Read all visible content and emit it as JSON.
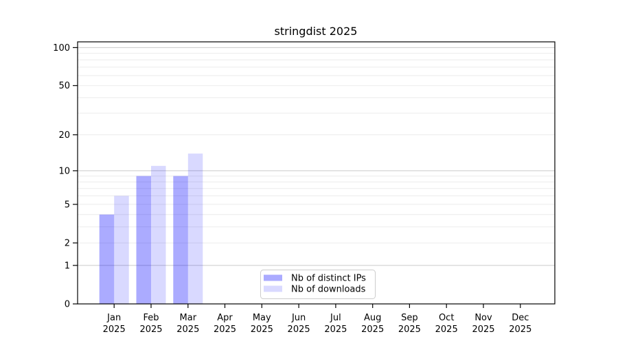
{
  "chart_data": {
    "type": "bar",
    "title": "stringdist 2025",
    "x_tick_labels": [
      [
        "Jan",
        "2025"
      ],
      [
        "Feb",
        "2025"
      ],
      [
        "Mar",
        "2025"
      ],
      [
        "Apr",
        "2025"
      ],
      [
        "May",
        "2025"
      ],
      [
        "Jun",
        "2025"
      ],
      [
        "Jul",
        "2025"
      ],
      [
        "Aug",
        "2025"
      ],
      [
        "Sep",
        "2025"
      ],
      [
        "Oct",
        "2025"
      ],
      [
        "Nov",
        "2025"
      ],
      [
        "Dec",
        "2025"
      ]
    ],
    "series": [
      {
        "name": "Nb of distinct IPs",
        "color": "#0000ff",
        "fill_opacity": 0.33,
        "values": [
          4,
          9,
          9,
          0,
          0,
          0,
          0,
          0,
          0,
          0,
          0,
          0
        ]
      },
      {
        "name": "Nb of downloads",
        "color": "#0000ff",
        "fill_opacity": 0.15,
        "values": [
          6,
          11,
          14,
          0,
          0,
          0,
          0,
          0,
          0,
          0,
          0,
          0
        ]
      }
    ],
    "y_ticks": [
      0,
      1,
      2,
      5,
      10,
      20,
      50,
      100
    ],
    "y_scale": "log1p",
    "ylim": [
      0,
      111
    ],
    "grid": {
      "minor_color": "#ebebeb",
      "major_color": "#c9c9c9",
      "major_values": [
        1,
        10,
        100
      ]
    },
    "axis_color": "#000000",
    "legend": {
      "position": "lower-center",
      "border_color": "#cccccc",
      "background": "#ffffff"
    }
  }
}
